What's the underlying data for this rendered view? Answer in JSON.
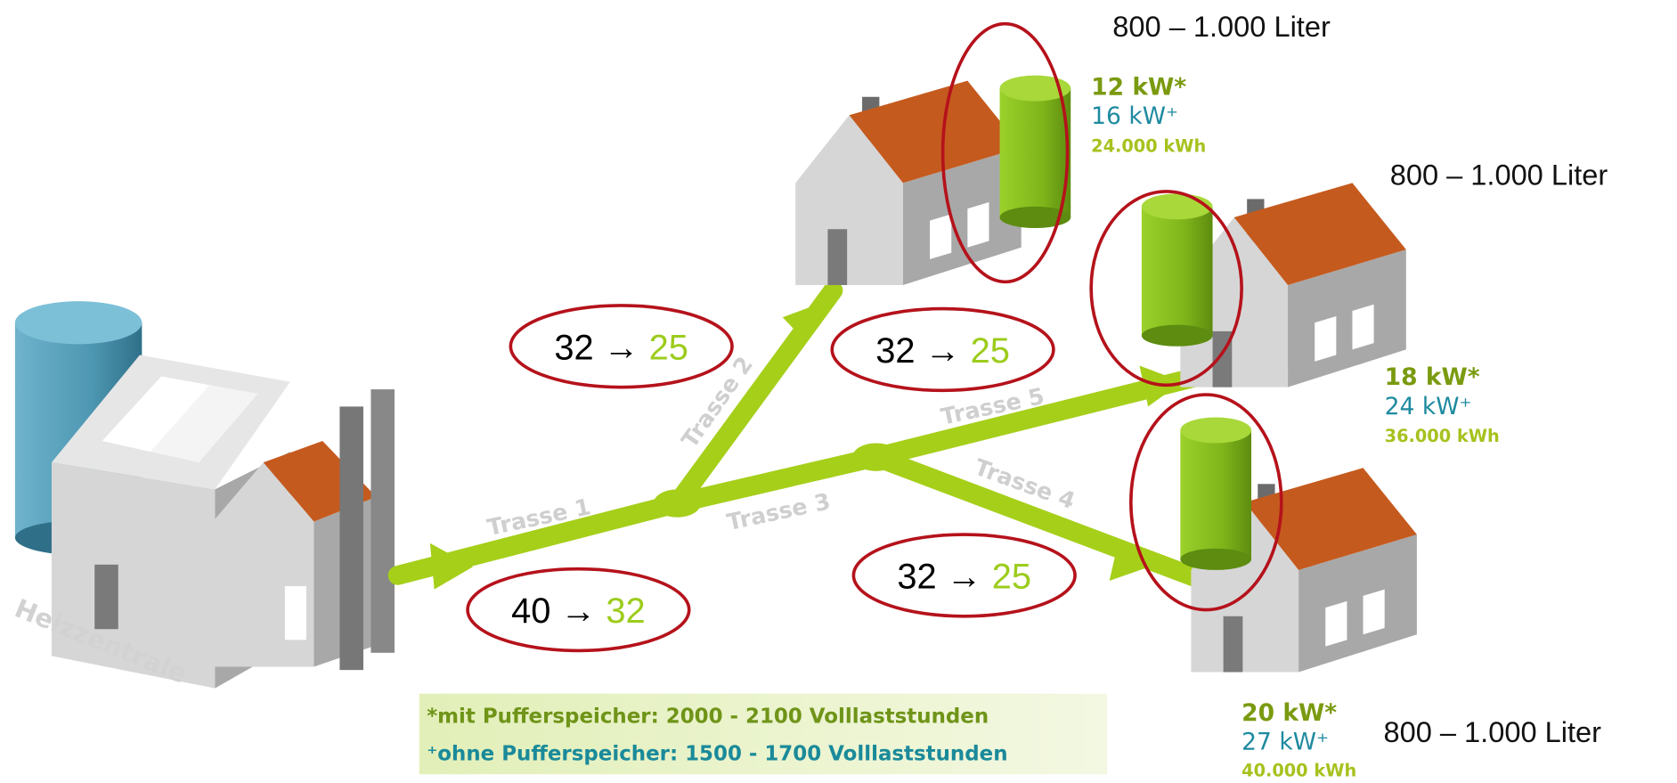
{
  "heat_plant": {
    "label": "Heizzentrale"
  },
  "routes": [
    "Trasse 1",
    "Trasse 2",
    "Trasse 3",
    "Trasse 4",
    "Trasse 5"
  ],
  "flows": [
    {
      "from": "32",
      "arrow": "→",
      "to": "25"
    },
    {
      "from": "32",
      "arrow": "→",
      "to": "25"
    },
    {
      "from": "40",
      "arrow": "→",
      "to": "32"
    },
    {
      "from": "32",
      "arrow": "→",
      "to": "25"
    }
  ],
  "houses": [
    {
      "storage": "800 – 1.000 Liter",
      "with_buffer": "12 kW*",
      "without_buffer": "16 kW⁺",
      "energy": "24.000 kWh"
    },
    {
      "storage": "800 – 1.000 Liter",
      "with_buffer": "18 kW*",
      "without_buffer": "24 kW⁺",
      "energy": "36.000 kWh"
    },
    {
      "storage": "800 – 1.000 Liter",
      "with_buffer": "20 kW*",
      "without_buffer": "27 kW⁺",
      "energy": "40.000 kWh"
    }
  ],
  "legend": [
    "*mit Pufferspeicher: 2000 - 2100 Volllaststunden",
    "⁺ohne Pufferspeicher: 1500 - 1700 Volllaststunden"
  ]
}
